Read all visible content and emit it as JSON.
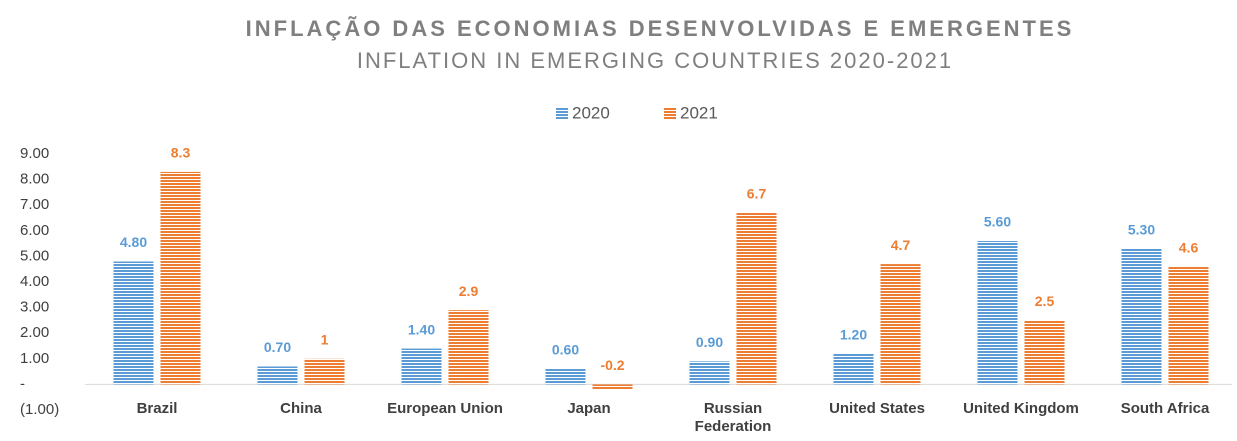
{
  "chart_data": {
    "type": "bar",
    "title": "INFLAÇÃO DAS ECONOMIAS DESENVOLVIDAS E EMERGENTES",
    "subtitle": "INFLATION IN EMERGING COUNTRIES 2020-2021",
    "categories": [
      "Brazil",
      "China",
      "European Union",
      "Japan",
      "Russian Federation",
      "United States",
      "United Kingdom",
      "South Africa"
    ],
    "series": [
      {
        "name": "2020",
        "color": "#5b9bd5",
        "values": [
          4.8,
          0.7,
          1.4,
          0.6,
          0.9,
          1.2,
          5.6,
          5.3
        ],
        "value_labels": [
          "4.80",
          "0.70",
          "1.40",
          "0.60",
          "0.90",
          "1.20",
          "5.60",
          "5.30"
        ]
      },
      {
        "name": "2021",
        "color": "#ed7d31",
        "values": [
          8.3,
          1,
          2.9,
          -0.2,
          6.7,
          4.7,
          2.5,
          4.6
        ]
      }
    ],
    "ylim": [
      -1,
      9
    ],
    "yticks": [
      {
        "value": -1,
        "label": "(1.00)"
      },
      {
        "value": 0,
        "label": "-"
      },
      {
        "value": 1,
        "label": "1.00"
      },
      {
        "value": 2,
        "label": "2.00"
      },
      {
        "value": 3,
        "label": "3.00"
      },
      {
        "value": 4,
        "label": "4.00"
      },
      {
        "value": 5,
        "label": "5.00"
      },
      {
        "value": 6,
        "label": "6.00"
      },
      {
        "value": 7,
        "label": "7.00"
      },
      {
        "value": 8,
        "label": "8.00"
      },
      {
        "value": 9,
        "label": "9.00"
      }
    ],
    "legend": "top"
  }
}
